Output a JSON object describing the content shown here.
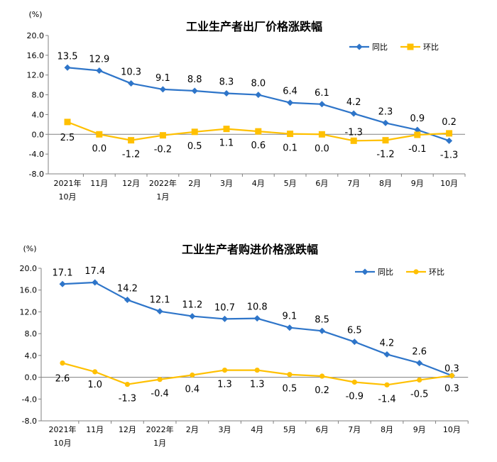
{
  "chart_data": [
    {
      "type": "line",
      "title": "工业生产者出厂价格涨跌幅",
      "ylabel": "(%)",
      "ylim": [
        -8.0,
        20.0
      ],
      "yticks": [
        "20.0",
        "16.0",
        "12.0",
        "8.0",
        "4.0",
        "0.0",
        "-4.0",
        "-8.0"
      ],
      "ytick_values": [
        20,
        16,
        12,
        8,
        4,
        0,
        -4,
        -8
      ],
      "categories": [
        [
          "2021年",
          "10月"
        ],
        [
          "11月"
        ],
        [
          "12月"
        ],
        [
          "2022年",
          "1月"
        ],
        [
          "2月"
        ],
        [
          "3月"
        ],
        [
          "4月"
        ],
        [
          "5月"
        ],
        [
          "6月"
        ],
        [
          "7月"
        ],
        [
          "8月"
        ],
        [
          "9月"
        ],
        [
          "10月"
        ]
      ],
      "legend": "top-right",
      "grid": false,
      "series": [
        {
          "name": "同比",
          "color": "#2e75c9",
          "marker": "diamond",
          "values": [
            13.5,
            12.9,
            10.3,
            9.1,
            8.8,
            8.3,
            8.0,
            6.4,
            6.1,
            4.2,
            2.3,
            0.9,
            -1.3
          ],
          "labels": [
            "13.5",
            "12.9",
            "10.3",
            "9.1",
            "8.8",
            "8.3",
            "8.0",
            "6.4",
            "6.1",
            "4.2",
            "2.3",
            "0.9",
            "-1.3"
          ]
        },
        {
          "name": "环比",
          "color": "#ffc000",
          "marker": "square",
          "values": [
            2.5,
            0.0,
            -1.2,
            -0.2,
            0.5,
            1.1,
            0.6,
            0.1,
            0.0,
            -1.3,
            -1.2,
            -0.1,
            0.2
          ],
          "labels": [
            "2.5",
            "0.0",
            "-1.2",
            "-0.2",
            "0.5",
            "1.1",
            "0.6",
            "0.1",
            "0.0",
            "-1.3",
            "-1.2",
            "-0.1",
            "0.2"
          ]
        }
      ]
    },
    {
      "type": "line",
      "title": "工业生产者购进价格涨跌幅",
      "ylabel": "(%)",
      "ylim": [
        -8.0,
        20.0
      ],
      "yticks": [
        "20.0",
        "16.0",
        "12.0",
        "8.0",
        "4.0",
        "0.0",
        "-4.0",
        "-8.0"
      ],
      "ytick_values": [
        20,
        16,
        12,
        8,
        4,
        0,
        -4,
        -8
      ],
      "categories": [
        [
          "2021年",
          "10月"
        ],
        [
          "11月"
        ],
        [
          "12月"
        ],
        [
          "2022年",
          "1月"
        ],
        [
          "2月"
        ],
        [
          "3月"
        ],
        [
          "4月"
        ],
        [
          "5月"
        ],
        [
          "6月"
        ],
        [
          "7月"
        ],
        [
          "8月"
        ],
        [
          "9月"
        ],
        [
          "10月"
        ]
      ],
      "legend": "top-right",
      "grid": false,
      "series": [
        {
          "name": "同比",
          "color": "#2e75c9",
          "marker": "diamond",
          "values": [
            17.1,
            17.4,
            14.2,
            12.1,
            11.2,
            10.7,
            10.8,
            9.1,
            8.5,
            6.5,
            4.2,
            2.6,
            0.3
          ],
          "labels": [
            "17.1",
            "17.4",
            "14.2",
            "12.1",
            "11.2",
            "10.7",
            "10.8",
            "9.1",
            "8.5",
            "6.5",
            "4.2",
            "2.6",
            "0.3"
          ]
        },
        {
          "name": "环比",
          "color": "#ffc000",
          "marker": "circle",
          "values": [
            2.6,
            1.0,
            -1.3,
            -0.4,
            0.4,
            1.3,
            1.3,
            0.5,
            0.2,
            -0.9,
            -1.4,
            -0.5,
            0.3
          ],
          "labels": [
            "2.6",
            "1.0",
            "-1.3",
            "-0.4",
            "0.4",
            "1.3",
            "1.3",
            "0.5",
            "0.2",
            "-0.9",
            "-1.4",
            "-0.5",
            "0.3"
          ]
        }
      ]
    }
  ]
}
